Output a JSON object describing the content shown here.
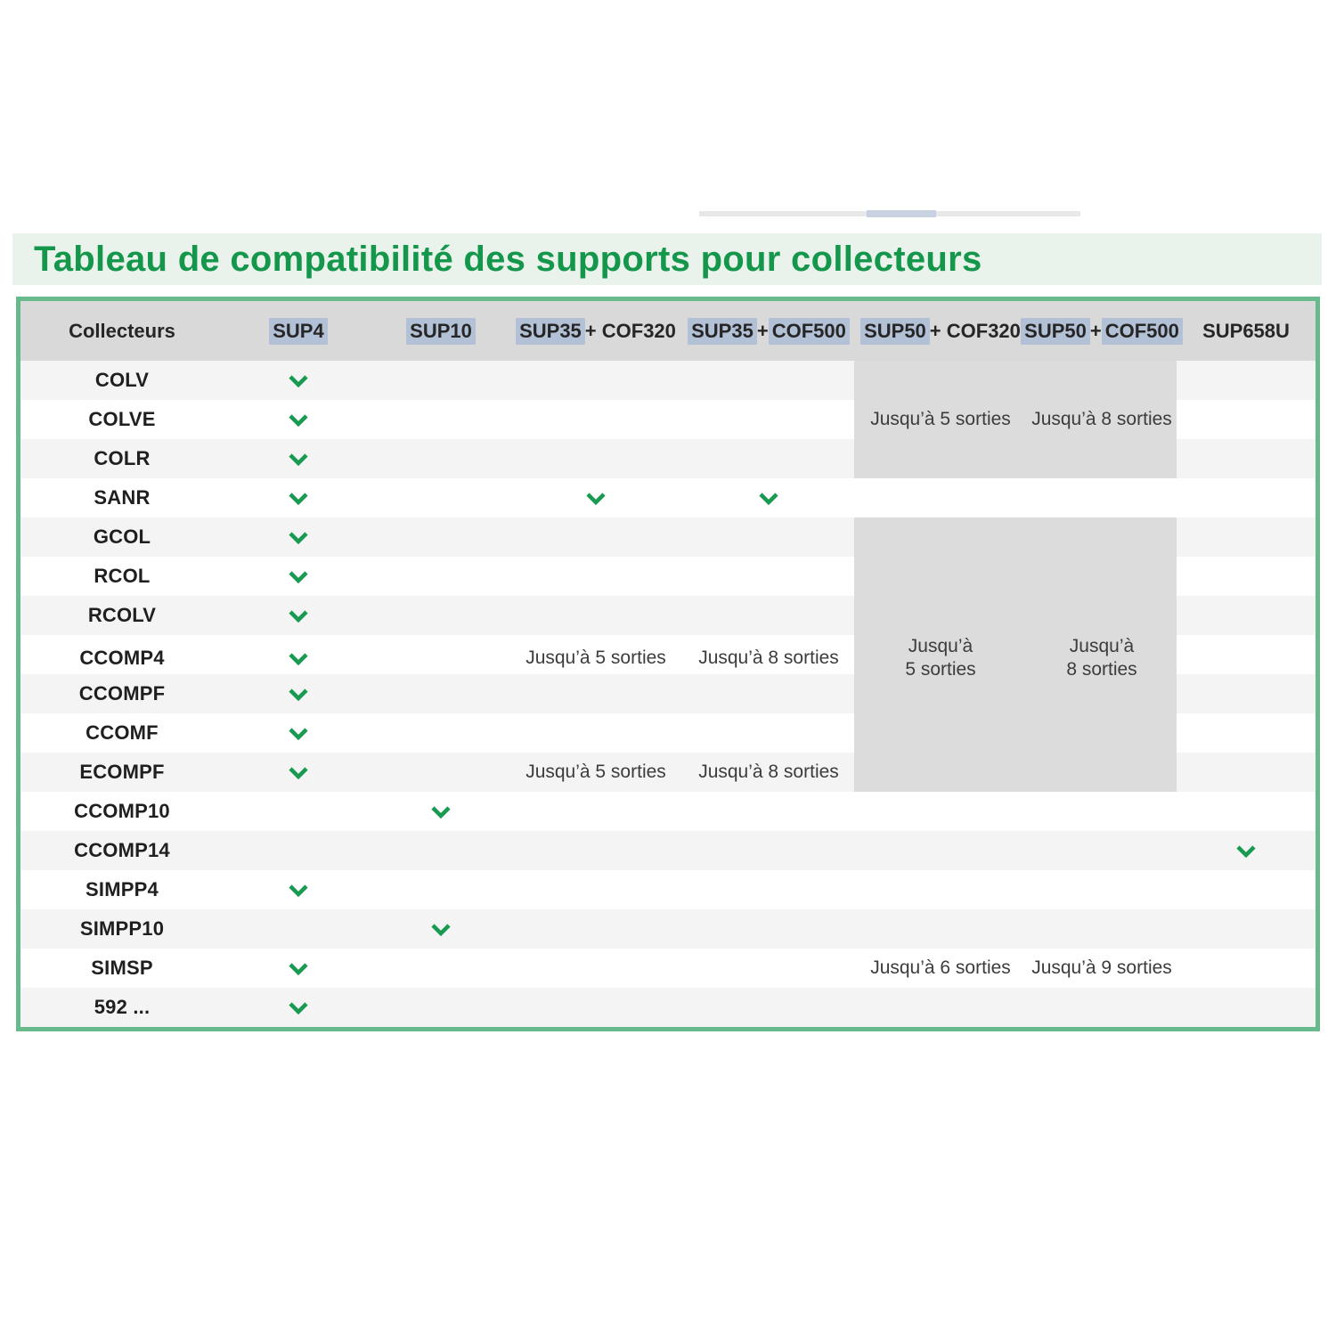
{
  "title": "Tableau de compatibilité des supports pour collecteurs",
  "colors": {
    "title_green": "#14964b",
    "band_bg": "#e9f3ec",
    "table_border": "#68b98c",
    "header_bg": "#d9d9d9",
    "highlight_bg": "#b3c1d6",
    "stripe_bg": "#f4f4f4",
    "shaded_bg": "#dcdcdc",
    "check_green": "#189a51",
    "artifact_bg": "#e8e8e8",
    "artifact_seg": "#c7d1e0"
  },
  "table": {
    "columns": [
      {
        "name": "collecteurs",
        "parts": [
          {
            "text": "Collecteurs",
            "highlight": false
          }
        ]
      },
      {
        "name": "sup4",
        "parts": [
          {
            "text": "SUP4",
            "highlight": true
          }
        ]
      },
      {
        "name": "sup10",
        "parts": [
          {
            "text": "SUP10",
            "highlight": true
          }
        ]
      },
      {
        "name": "sup35-cof320",
        "parts": [
          {
            "text": "SUP35",
            "highlight": true
          },
          {
            "text": " + COF320",
            "highlight": false
          }
        ]
      },
      {
        "name": "sup35-cof500",
        "parts": [
          {
            "text": "SUP35",
            "highlight": true
          },
          {
            "text": " + ",
            "highlight": false
          },
          {
            "text": "COF500",
            "highlight": true
          }
        ]
      },
      {
        "name": "sup50-cof320",
        "parts": [
          {
            "text": "SUP50",
            "highlight": true
          },
          {
            "text": " + COF320",
            "highlight": false
          }
        ]
      },
      {
        "name": "sup50-cof500",
        "parts": [
          {
            "text": "SUP50",
            "highlight": true
          },
          {
            "text": " + ",
            "highlight": false
          },
          {
            "text": "COF500",
            "highlight": true
          }
        ]
      },
      {
        "name": "sup658u",
        "parts": [
          {
            "text": "SUP658U",
            "highlight": false
          }
        ]
      }
    ],
    "rows": [
      {
        "label": "COLV",
        "cells": [
          {
            "v": "check"
          },
          {},
          {},
          {},
          {
            "shaded": true
          },
          {
            "shaded": true
          },
          {}
        ]
      },
      {
        "label": "COLVE",
        "cells": [
          {
            "v": "check"
          },
          {},
          {},
          {},
          {
            "v": "Jusqu’à 5 sorties",
            "shaded": true
          },
          {
            "v": "Jusqu’à 8 sorties",
            "shaded": true
          },
          {}
        ]
      },
      {
        "label": "COLR",
        "cells": [
          {
            "v": "check"
          },
          {},
          {},
          {},
          {
            "shaded": true
          },
          {
            "shaded": true
          },
          {}
        ]
      },
      {
        "label": "SANR",
        "cells": [
          {
            "v": "check"
          },
          {},
          {
            "v": "check"
          },
          {
            "v": "check"
          },
          {},
          {},
          {}
        ]
      },
      {
        "label": "GCOL",
        "cells": [
          {
            "v": "check"
          },
          {},
          {},
          {},
          {
            "shaded": true
          },
          {
            "shaded": true
          },
          {}
        ]
      },
      {
        "label": "RCOL",
        "cells": [
          {
            "v": "check"
          },
          {},
          {},
          {},
          {
            "shaded": true
          },
          {
            "shaded": true
          },
          {}
        ]
      },
      {
        "label": "RCOLV",
        "cells": [
          {
            "v": "check"
          },
          {},
          {},
          {},
          {
            "shaded": true
          },
          {
            "shaded": true
          },
          {}
        ]
      },
      {
        "label": "CCOMP4",
        "cells": [
          {
            "v": "check"
          },
          {},
          {
            "v": "Jusqu’à 5 sorties"
          },
          {
            "v": "Jusqu’à 8 sorties"
          },
          {
            "v": "Jusqu’à\n5 sorties",
            "shaded": true
          },
          {
            "v": "Jusqu’à\n8 sorties",
            "shaded": true
          },
          {}
        ]
      },
      {
        "label": "CCOMPF",
        "cells": [
          {
            "v": "check"
          },
          {},
          {},
          {},
          {
            "shaded": true
          },
          {
            "shaded": true
          },
          {}
        ]
      },
      {
        "label": "CCOMF",
        "cells": [
          {
            "v": "check"
          },
          {},
          {},
          {},
          {
            "shaded": true
          },
          {
            "shaded": true
          },
          {}
        ]
      },
      {
        "label": "ECOMPF",
        "cells": [
          {
            "v": "check"
          },
          {},
          {
            "v": "Jusqu’à 5 sorties"
          },
          {
            "v": "Jusqu’à 8 sorties"
          },
          {
            "shaded": true
          },
          {
            "shaded": true
          },
          {}
        ]
      },
      {
        "label": "CCOMP10",
        "cells": [
          {},
          {
            "v": "check"
          },
          {},
          {},
          {},
          {},
          {}
        ]
      },
      {
        "label": "CCOMP14",
        "cells": [
          {},
          {},
          {},
          {},
          {},
          {},
          {
            "v": "check"
          }
        ]
      },
      {
        "label": "SIMPP4",
        "cells": [
          {
            "v": "check"
          },
          {},
          {},
          {},
          {},
          {},
          {}
        ]
      },
      {
        "label": "SIMPP10",
        "cells": [
          {},
          {
            "v": "check"
          },
          {},
          {},
          {},
          {},
          {}
        ]
      },
      {
        "label": "SIMSP",
        "cells": [
          {
            "v": "check"
          },
          {},
          {},
          {},
          {
            "v": "Jusqu’à 6 sorties"
          },
          {
            "v": "Jusqu’à 9 sorties"
          },
          {}
        ]
      },
      {
        "label": "592 ...",
        "cells": [
          {
            "v": "check"
          },
          {},
          {},
          {},
          {},
          {},
          {}
        ]
      }
    ]
  }
}
